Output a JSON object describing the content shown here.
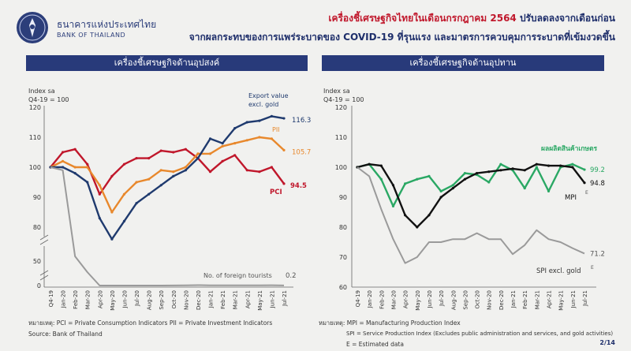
{
  "header": {
    "org_th": "ธนาคารแห่งประเทศไทย",
    "org_en": "BANK OF THAILAND",
    "title_red": "เครื่องชี้เศรษฐกิจไทยในเดือนกรกฎาคม 2564",
    "title_rest": " ปรับลดลงจากเดือนก่อน",
    "title_line2": "จากผลกระทบของการแพร่ระบาดของ COVID-19 ที่รุนแรง และมาตรการควบคุมการระบาดที่เข้มงวดขึ้น"
  },
  "colors": {
    "navy": "#283a7a",
    "red": "#c0172b",
    "pci": "#c0172b",
    "pii": "#e8882c",
    "export": "#1f3a6e",
    "tourists": "#9a9a9a",
    "agri": "#2aa864",
    "mpi": "#111111",
    "spi": "#9a9a9a"
  },
  "footer": {
    "left_note": "หมายเหตุ: PCI = Private Consumption Indicators     PII = Private Investment Indicators",
    "left_source": "Source: Bank of Thailand",
    "right_note1": "หมายเหตุ: MPI = Manufacturing Production Index",
    "right_note2": "SPI = Service Production Index (Excludes public administration and services, and gold activities)",
    "right_note3": "E = Estimated data",
    "page": "2/14"
  },
  "chart_data": [
    {
      "panel_title": "เครื่องชี้เศรษฐกิจด้านอุปสงค์",
      "type": "line",
      "ylabel": "Index sa",
      "ylabel2": "Q4-19 = 100",
      "x": [
        "Q4-19",
        "Jan-20",
        "Feb-20",
        "Mar-20",
        "Apr-20",
        "May-20",
        "Jun-20",
        "Jul-20",
        "Aug-20",
        "Sep-20",
        "Oct-20",
        "Nov-20",
        "Dec-20",
        "Jan-21",
        "Feb-21",
        "Mar-21",
        "Apr-21",
        "May-21",
        "Jun-21",
        "Jul-21"
      ],
      "x_tick_labels": [
        "Q4-19",
        "Jan-20",
        "Feb-20",
        "Mar-20",
        "Apr-20",
        "May-20",
        "Jun-20",
        "Jul-20",
        "Aug-20",
        "Sep-20",
        "Oct-20",
        "Nov-20",
        "Dec-20",
        "Jan-21",
        "Feb-21",
        "Mar-21",
        "Apr-21",
        "May-21",
        "Jun-21",
        "Jul-21"
      ],
      "y_ticks_upper": [
        80,
        90,
        100,
        110,
        120
      ],
      "y_ticks_lower": [
        0,
        50
      ],
      "ylim_upper": [
        75,
        122
      ],
      "axis_break": true,
      "series": [
        {
          "name": "PCI",
          "color_key": "pci",
          "end_label": "94.5",
          "values": [
            100,
            105,
            106,
            101,
            91,
            97,
            101,
            103,
            103,
            105.5,
            105,
            106,
            103,
            98.5,
            102,
            104,
            99,
            98.5,
            100,
            94.5
          ]
        },
        {
          "name": "PII",
          "color_key": "pii",
          "end_label": "105.7",
          "values": [
            100,
            102,
            100,
            100,
            94,
            85,
            91,
            95,
            96,
            99,
            98.5,
            100,
            104.5,
            104.5,
            107,
            108,
            109,
            110,
            109.5,
            105.7
          ]
        },
        {
          "name": "Export value excl. gold",
          "label_line1": "Export value",
          "label_line2": "excl. gold",
          "color_key": "export",
          "end_label": "116.3",
          "values": [
            100,
            100,
            98,
            95,
            83,
            76,
            82,
            88,
            91,
            94,
            97,
            99,
            103,
            109.5,
            108,
            113,
            115,
            115.5,
            117,
            116.3
          ]
        },
        {
          "name": "No. of foreign tourists",
          "color_key": "tourists",
          "end_label": "0.2",
          "lower_axis": true,
          "values": [
            100,
            98,
            60,
            30,
            0,
            0,
            0,
            0,
            0,
            0,
            0.2,
            0.5,
            0.8,
            0.5,
            0.4,
            0.5,
            0.5,
            0.5,
            0.6,
            0.2
          ]
        }
      ]
    },
    {
      "panel_title": "เครื่องชี้เศรษฐกิจด้านอุปทาน",
      "type": "line",
      "ylabel": "Index sa",
      "ylabel2": "Q4-19 = 100",
      "x": [
        "Q4-19",
        "Jan-20",
        "Feb-20",
        "Mar-20",
        "Apr-20",
        "May-20",
        "Jun-20",
        "Jul-20",
        "Aug-20",
        "Sep-20",
        "Oct-20",
        "Nov-20",
        "Dec-20",
        "Jan-21",
        "Feb-21",
        "Mar-21",
        "Apr-21",
        "May-21",
        "Jun-21",
        "Jul-21"
      ],
      "x_tick_labels": [
        "Q4-19",
        "Jan-20",
        "Feb-20",
        "Mar-20",
        "Apr-20",
        "May-20",
        "Jun-20",
        "Jul-20",
        "Aug-20",
        "Sep-20",
        "Oct-20",
        "Nov-20",
        "Dec-20",
        "Jan-21",
        "Feb-21",
        "Mar-21",
        "Apr-21",
        "May-21",
        "Jun-21",
        "Jul-21"
      ],
      "y_ticks": [
        60,
        70,
        80,
        90,
        100,
        110,
        120
      ],
      "ylim": [
        60,
        120
      ],
      "series": [
        {
          "name": "ผลผลิตสินค้าเกษตร",
          "color_key": "agri",
          "end_label": "99.2",
          "values": [
            100,
            101,
            96,
            87,
            94.5,
            96,
            97,
            92,
            94,
            98,
            97.5,
            95,
            101,
            99,
            93,
            100,
            92,
            100,
            101,
            99.2
          ]
        },
        {
          "name": "MPI",
          "color_key": "mpi",
          "end_label": "94.8",
          "end_note": "E",
          "values": [
            100,
            101,
            100.5,
            94,
            84,
            80,
            84,
            90,
            93,
            96,
            98,
            98.5,
            99,
            99.5,
            99,
            101,
            100.5,
            100.5,
            100,
            94.8
          ]
        },
        {
          "name": "SPI excl. gold",
          "color_key": "spi",
          "end_label": "71.2",
          "end_note": "E",
          "values": [
            100,
            97,
            86,
            76,
            68,
            70,
            75,
            75,
            76,
            76,
            78,
            76,
            76,
            71,
            74,
            79,
            76,
            75,
            73,
            71.2
          ]
        }
      ]
    }
  ]
}
